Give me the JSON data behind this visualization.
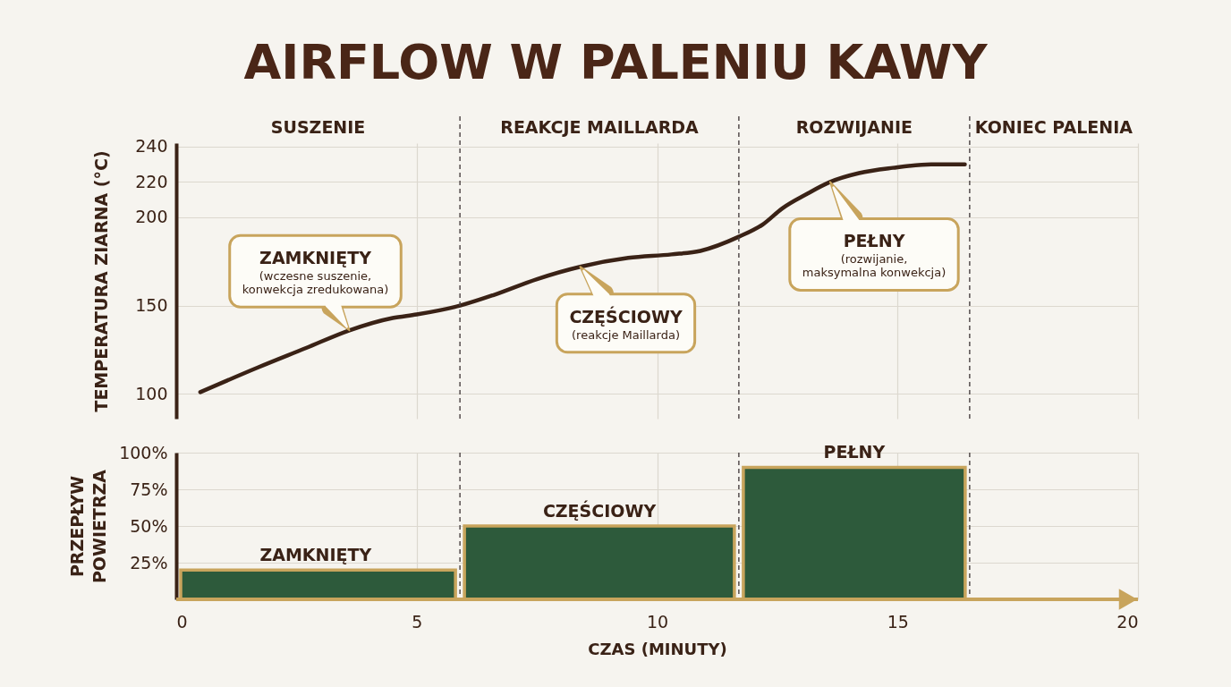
{
  "chart_data": [
    {
      "type": "line",
      "title": "AIRFLOW W PALENIU KAWY",
      "ylabel": "TEMPERATURA ZIARNA (°C)",
      "x": [
        0.5,
        1.7,
        2.7,
        3.6,
        4.5,
        5.0,
        5.9,
        6.6,
        7.5,
        8.4,
        9.4,
        10.3,
        10.9,
        11.7,
        12.2,
        12.6,
        13.1,
        13.6,
        14.2,
        14.9,
        15.7,
        16.4
      ],
      "values": [
        101,
        115,
        126,
        136,
        143,
        145,
        150,
        156,
        165,
        172,
        177,
        179,
        181,
        189,
        196,
        205,
        213,
        220,
        225,
        228,
        230,
        230
      ],
      "color": "#3a2216",
      "xlim": [
        0,
        20
      ],
      "xticks": [
        0,
        5,
        10,
        15,
        20
      ],
      "ylim": [
        86,
        242
      ],
      "yticks": [
        100,
        150,
        200,
        220,
        240
      ],
      "grid": true,
      "tick_labels": "y",
      "ref_lines": [
        {
          "axis": "x",
          "value": 5.9,
          "color": "#4a4242",
          "line_style": "dashed"
        },
        {
          "axis": "x",
          "value": 11.7,
          "color": "#4a4242",
          "line_style": "dashed"
        },
        {
          "axis": "x",
          "value": 16.5,
          "color": "#4a4242",
          "line_style": "dashed"
        }
      ],
      "annotations": [
        "SUSZENIE",
        "REAKCJE MAILLARDA",
        "ROZWIJANIE",
        "KONIEC PALENIA",
        {
          "text": "ZAMKNIĘTY\n(wczesne suszenie,\nkonwekcja zredukowana)",
          "x": 3.6,
          "y": 136
        },
        {
          "text": "CZĘŚCIOWY\n(reakcje Maillarda)",
          "x": 8.4,
          "y": 172
        },
        {
          "text": "PEŁNY\n(rozwijanie,\nmaksymalna konwekcja)",
          "x": 13.6,
          "y": 220
        }
      ]
    },
    {
      "type": "histogram",
      "xlabel": "CZAS (MINUTY)",
      "ylabel": "PRZEPŁYW POWIETRZA",
      "bins": [
        0,
        5.9,
        11.7,
        16.5
      ],
      "values": [
        20,
        50,
        90
      ],
      "color": "#2d5a3b",
      "xlim": [
        0,
        20
      ],
      "xticks": [
        0,
        5,
        10,
        15,
        20
      ],
      "ylim": [
        0,
        100
      ],
      "yticks": [
        {
          "value": 25,
          "label": "25%"
        },
        {
          "value": 50,
          "label": "50%"
        },
        {
          "value": 75,
          "label": "75%"
        },
        {
          "value": 100,
          "label": "100%"
        }
      ],
      "grid": true,
      "ref_lines": [
        {
          "axis": "x",
          "value": 5.9,
          "color": "#4a4242",
          "line_style": "dashed"
        },
        {
          "axis": "x",
          "value": 11.7,
          "color": "#4a4242",
          "line_style": "dashed"
        },
        {
          "axis": "x",
          "value": 16.5,
          "color": "#4a4242",
          "line_style": "dashed"
        }
      ],
      "annotations": [
        {
          "text": "ZAMKNIĘTY",
          "x": 2.9,
          "y": 20
        },
        {
          "text": "CZĘŚCIOWY",
          "x": 8.8,
          "y": 50
        },
        {
          "text": "PEŁNY",
          "x": 14.1,
          "y": 90
        }
      ]
    }
  ]
}
